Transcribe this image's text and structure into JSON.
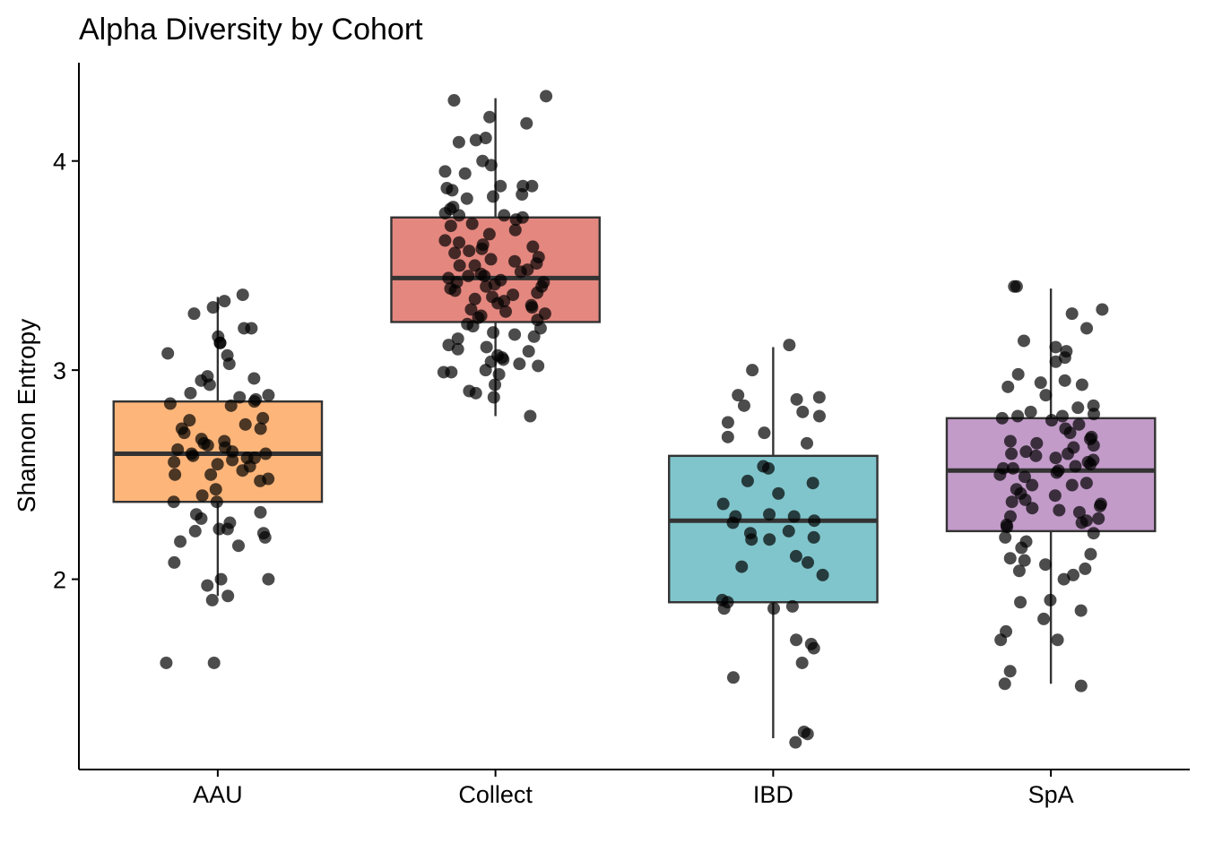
{
  "chart_data": {
    "type": "boxplot",
    "title": "Alpha Diversity by Cohort",
    "xlabel": "",
    "ylabel": "Shannon Entropy",
    "categories": [
      "AAU",
      "Collect",
      "IBD",
      "SpA"
    ],
    "ylim": [
      1.09,
      4.47
    ],
    "yticks": [
      2,
      3,
      4
    ],
    "grid": false,
    "legend": "none",
    "groups": [
      {
        "name": "AAU",
        "color": "#FDB57A",
        "box": {
          "min": 1.92,
          "q1": 2.37,
          "median": 2.6,
          "q3": 2.85,
          "max": 3.35
        },
        "points": [
          3.36,
          3.33,
          3.3,
          3.27,
          3.2,
          3.2,
          3.16,
          3.13,
          3.13,
          3.08,
          3.07,
          3.03,
          2.97,
          2.96,
          2.95,
          2.93,
          2.89,
          2.88,
          2.87,
          2.86,
          2.85,
          2.84,
          2.83,
          2.77,
          2.76,
          2.74,
          2.72,
          2.72,
          2.7,
          2.67,
          2.66,
          2.65,
          2.64,
          2.63,
          2.62,
          2.61,
          2.6,
          2.6,
          2.59,
          2.58,
          2.58,
          2.57,
          2.56,
          2.55,
          2.54,
          2.52,
          2.5,
          2.5,
          2.48,
          2.47,
          2.43,
          2.4,
          2.37,
          2.37,
          2.32,
          2.31,
          2.29,
          2.27,
          2.24,
          2.24,
          2.23,
          2.22,
          2.2,
          2.18,
          2.16,
          2.08,
          2.0,
          2.0,
          1.97,
          1.92,
          1.9,
          1.6,
          1.6
        ]
      },
      {
        "name": "Collect",
        "color": "#E4877F",
        "box": {
          "min": 2.78,
          "q1": 3.23,
          "median": 3.44,
          "q3": 3.73,
          "max": 4.3
        },
        "points": [
          4.31,
          4.29,
          4.21,
          4.18,
          4.11,
          4.1,
          4.09,
          4.0,
          3.98,
          3.95,
          3.94,
          3.88,
          3.88,
          3.88,
          3.87,
          3.86,
          3.84,
          3.83,
          3.82,
          3.78,
          3.77,
          3.75,
          3.74,
          3.74,
          3.73,
          3.72,
          3.7,
          3.69,
          3.67,
          3.65,
          3.62,
          3.61,
          3.6,
          3.59,
          3.58,
          3.57,
          3.56,
          3.54,
          3.53,
          3.52,
          3.51,
          3.5,
          3.5,
          3.48,
          3.47,
          3.46,
          3.45,
          3.45,
          3.44,
          3.43,
          3.42,
          3.42,
          3.41,
          3.4,
          3.4,
          3.39,
          3.38,
          3.37,
          3.36,
          3.35,
          3.34,
          3.33,
          3.32,
          3.31,
          3.3,
          3.29,
          3.28,
          3.27,
          3.26,
          3.25,
          3.24,
          3.22,
          3.21,
          3.2,
          3.18,
          3.17,
          3.16,
          3.15,
          3.12,
          3.11,
          3.1,
          3.09,
          3.07,
          3.06,
          3.05,
          3.04,
          3.03,
          3.02,
          3.0,
          2.99,
          2.99,
          2.98,
          2.93,
          2.9,
          2.89,
          2.87,
          2.78
        ]
      },
      {
        "name": "IBD",
        "color": "#80C5CC",
        "box": {
          "min": 1.24,
          "q1": 1.89,
          "median": 2.28,
          "q3": 2.59,
          "max": 3.11
        },
        "points": [
          3.12,
          3.0,
          2.88,
          2.87,
          2.86,
          2.83,
          2.8,
          2.78,
          2.75,
          2.7,
          2.68,
          2.65,
          2.54,
          2.53,
          2.47,
          2.46,
          2.41,
          2.36,
          2.31,
          2.3,
          2.3,
          2.28,
          2.27,
          2.23,
          2.22,
          2.2,
          2.19,
          2.19,
          2.11,
          2.08,
          2.06,
          2.02,
          1.9,
          1.89,
          1.87,
          1.86,
          1.86,
          1.71,
          1.69,
          1.67,
          1.6,
          1.53,
          1.27,
          1.26,
          1.22
        ]
      },
      {
        "name": "SpA",
        "color": "#C29BC9",
        "box": {
          "min": 1.5,
          "q1": 2.23,
          "median": 2.52,
          "q3": 2.77,
          "max": 3.39
        },
        "points": [
          3.4,
          3.4,
          3.29,
          3.27,
          3.2,
          3.14,
          3.11,
          3.09,
          3.06,
          3.04,
          2.98,
          2.95,
          2.94,
          2.93,
          2.92,
          2.88,
          2.83,
          2.82,
          2.8,
          2.79,
          2.78,
          2.78,
          2.77,
          2.76,
          2.74,
          2.72,
          2.7,
          2.68,
          2.67,
          2.66,
          2.65,
          2.64,
          2.63,
          2.61,
          2.6,
          2.6,
          2.59,
          2.58,
          2.57,
          2.56,
          2.55,
          2.54,
          2.53,
          2.53,
          2.52,
          2.51,
          2.5,
          2.49,
          2.46,
          2.45,
          2.45,
          2.43,
          2.41,
          2.4,
          2.38,
          2.37,
          2.36,
          2.35,
          2.34,
          2.33,
          2.32,
          2.3,
          2.29,
          2.28,
          2.27,
          2.26,
          2.25,
          2.22,
          2.2,
          2.18,
          2.15,
          2.12,
          2.1,
          2.09,
          2.07,
          2.05,
          2.04,
          2.02,
          2.0,
          1.9,
          1.89,
          1.85,
          1.81,
          1.75,
          1.71,
          1.71,
          1.56,
          1.5,
          1.49
        ]
      }
    ]
  }
}
